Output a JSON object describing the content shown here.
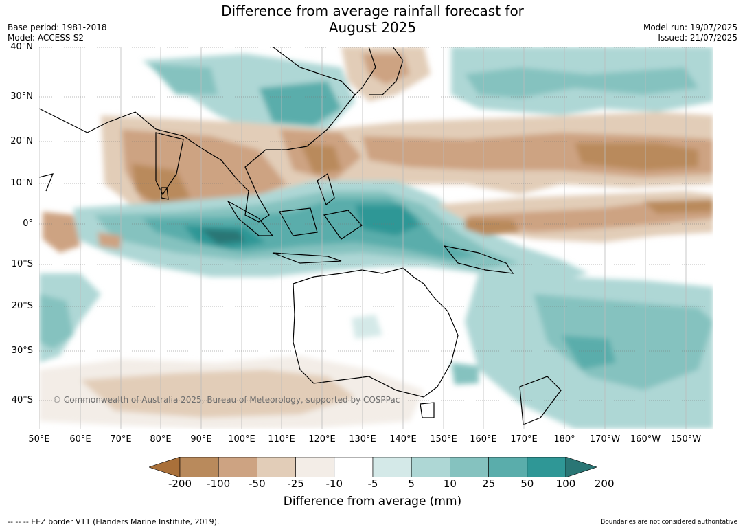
{
  "title_line1": "Difference from average rainfall forecast for",
  "title_line2": "August 2025",
  "base_period": "Base period: 1981-2018",
  "model": "Model: ACCESS-S2",
  "model_run": "Model run: 19/07/2025",
  "issued": "Issued: 21/07/2025",
  "lat_labels": [
    "40°N",
    "30°N",
    "20°N",
    "10°N",
    "0°",
    "10°S",
    "20°S",
    "30°S",
    "40°S"
  ],
  "lon_labels": [
    "50°E",
    "60°E",
    "70°E",
    "80°E",
    "90°E",
    "100°E",
    "110°E",
    "120°E",
    "130°E",
    "140°E",
    "150°E",
    "160°E",
    "170°E",
    "180°",
    "170°W",
    "160°W",
    "150°W"
  ],
  "copyright": "© Commonwealth of Australia 2025, Bureau of Meteorology, supported by COSPPac",
  "colorbar": {
    "ticks": [
      "-200",
      "-100",
      "-50",
      "-25",
      "-10",
      "-5",
      "5",
      "10",
      "25",
      "50",
      "100",
      "200"
    ],
    "colors": [
      "#a9703a",
      "#b98a5c",
      "#cda382",
      "#e2cdb8",
      "#f3ede7",
      "#ffffff",
      "#d4e9e8",
      "#aed7d5",
      "#85c2bf",
      "#5aadab",
      "#2f9796",
      "#2a7675"
    ],
    "label": "Difference from average (mm)"
  },
  "footer_left": "--  --  -- EEZ border V11 (Flanders Marine Institute, 2019).",
  "footer_right": "Boundaries are not considered authoritative"
}
